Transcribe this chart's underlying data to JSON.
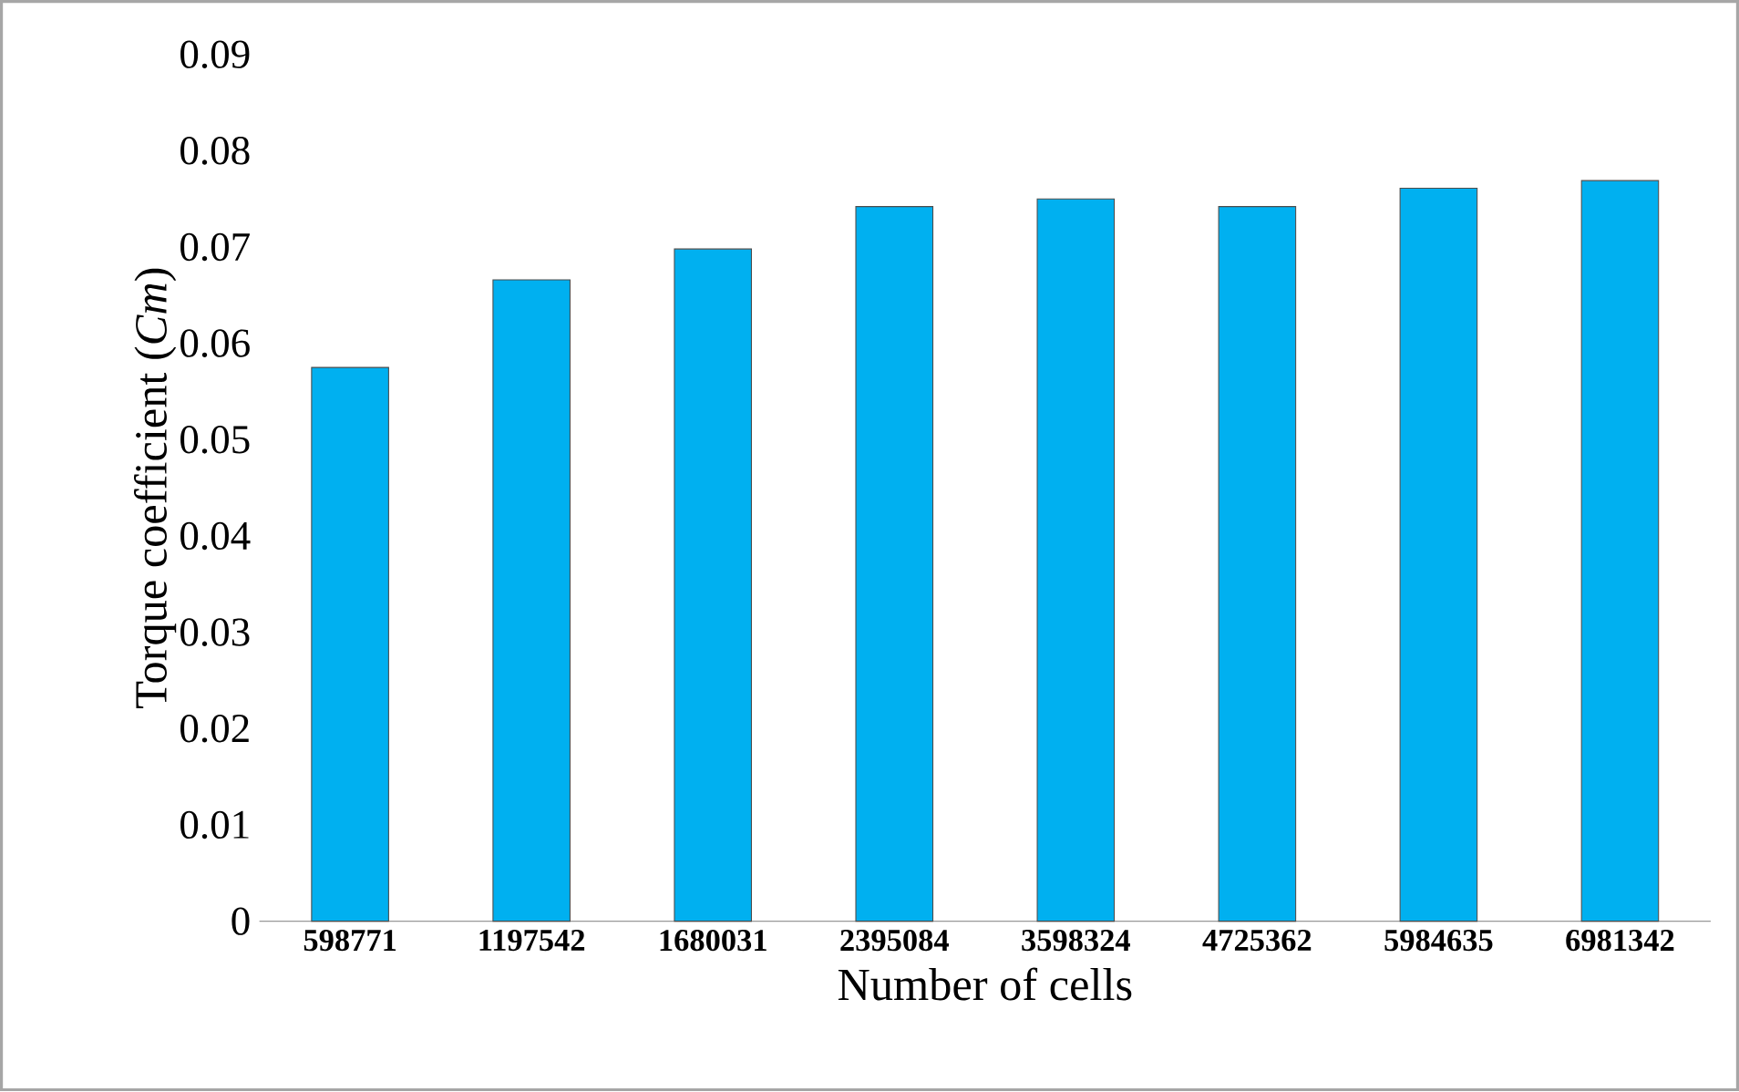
{
  "chart_data": {
    "type": "bar",
    "xlabel": "Number of cells",
    "ylabel": "Torque coefficient (*Cm*)",
    "categories": [
      "598771",
      "1197542",
      "1680031",
      "2395084",
      "3598324",
      "4725362",
      "5984635",
      "6981342"
    ],
    "values": [
      0.0575,
      0.0666,
      0.0698,
      0.0742,
      0.075,
      0.0742,
      0.0761,
      0.0769
    ],
    "color": "#00b0f0",
    "ylim": [
      0,
      0.09
    ],
    "yticks": [
      0,
      0.01,
      0.02,
      0.03,
      0.04,
      0.05,
      0.06,
      0.07,
      0.08,
      0.09
    ],
    "grid": false
  }
}
